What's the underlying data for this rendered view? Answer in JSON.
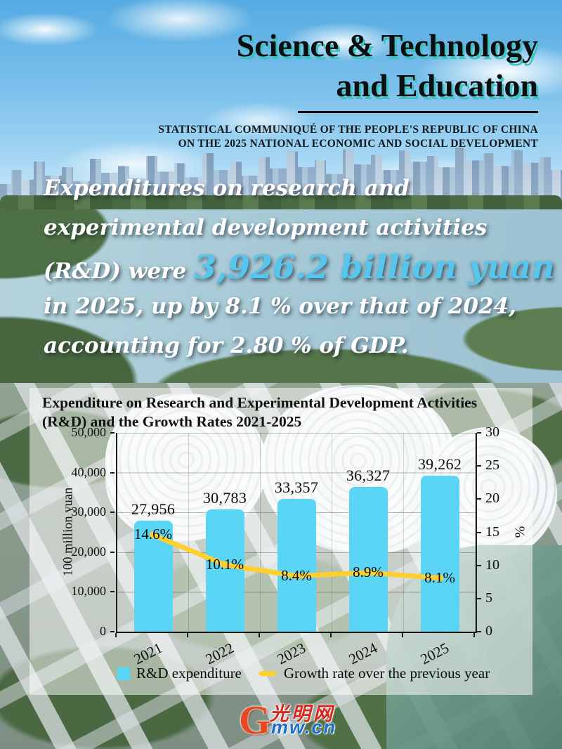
{
  "header": {
    "title_line1": "Science & Technology",
    "title_line2": "and Education",
    "subtitle_line1": "STATISTICAL COMMUNIQUÉ OF THE PEOPLE'S REPUBLIC OF CHINA",
    "subtitle_line2": "ON THE 2025 NATIONAL ECONOMIC AND SOCIAL DEVELOPMENT"
  },
  "intro": {
    "line1": "Expenditures on research and",
    "line2": "experimental development activities",
    "line3_pre": "(R&D) were ",
    "line3_highlight": "3,926.2 billion yuan",
    "line4": "in 2025, up by 8.1 % over that of 2024,",
    "line5": "accounting for 2.80 % of GDP.",
    "highlight_color": "#56C6EE"
  },
  "chart_data": {
    "type": "bar+line",
    "title": "Expenditure on Research and Experimental Development Activities (R&D) and the Growth Rates 2021-2025",
    "categories": [
      "2021",
      "2022",
      "2023",
      "2024",
      "2025"
    ],
    "series": [
      {
        "name": "R&D expenditure",
        "type": "bar",
        "values": [
          27956,
          30783,
          33357,
          36327,
          39262
        ],
        "labels": [
          "27,956",
          "30,783",
          "33,357",
          "36,327",
          "39,262"
        ]
      },
      {
        "name": "Growth rate over the previous year",
        "type": "line",
        "values": [
          14.6,
          10.1,
          8.4,
          8.9,
          8.1
        ],
        "labels": [
          "14.6%",
          "10.1%",
          "8.4%",
          "8.9%",
          "8.1%"
        ]
      }
    ],
    "left_axis": {
      "label": "100 million yuan",
      "min": 0,
      "max": 50000,
      "step": 10000,
      "tick_labels": [
        "0",
        "10,000",
        "20,000",
        "30,000",
        "40,000",
        "50,000"
      ]
    },
    "right_axis": {
      "label": "%",
      "min": 0,
      "max": 30,
      "step": 5,
      "tick_labels": [
        "0",
        "5",
        "10",
        "15",
        "20",
        "25",
        "30"
      ]
    },
    "grid": true,
    "legend_position": "bottom",
    "colors": {
      "bar": "#5BD5F6",
      "line": "#FFCE2F"
    }
  },
  "footer": {
    "logo_g": "G",
    "logo_cn": "光明网",
    "logo_domain": "mw.cn"
  }
}
